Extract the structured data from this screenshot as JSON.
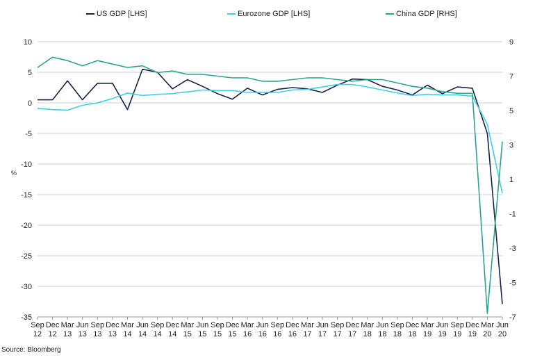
{
  "source": "Source: Bloomberg",
  "chart_data": {
    "type": "line",
    "title": "",
    "ylabel": "%",
    "ylim": [
      -35,
      10
    ],
    "y2lim": [
      -7,
      9
    ],
    "yticks": [
      10,
      5,
      0,
      -5,
      -10,
      -15,
      -20,
      -25,
      -30,
      -35
    ],
    "y2ticks": [
      9,
      7,
      5,
      3,
      1,
      -1,
      -3,
      -5,
      -7
    ],
    "grid": true,
    "legend_position": "top",
    "categories": [
      {
        "m": "Sep",
        "y": "12"
      },
      {
        "m": "Dec",
        "y": "12"
      },
      {
        "m": "Mar",
        "y": "13"
      },
      {
        "m": "Jun",
        "y": "13"
      },
      {
        "m": "Sep",
        "y": "13"
      },
      {
        "m": "Dec",
        "y": "13"
      },
      {
        "m": "Mar",
        "y": "14"
      },
      {
        "m": "Jun",
        "y": "14"
      },
      {
        "m": "Sep",
        "y": "14"
      },
      {
        "m": "Dec",
        "y": "14"
      },
      {
        "m": "Mar",
        "y": "15"
      },
      {
        "m": "Jun",
        "y": "15"
      },
      {
        "m": "Sep",
        "y": "15"
      },
      {
        "m": "Dec",
        "y": "15"
      },
      {
        "m": "Mar",
        "y": "16"
      },
      {
        "m": "Jun",
        "y": "16"
      },
      {
        "m": "Sep",
        "y": "16"
      },
      {
        "m": "Dec",
        "y": "16"
      },
      {
        "m": "Mar",
        "y": "17"
      },
      {
        "m": "Jun",
        "y": "17"
      },
      {
        "m": "Sep",
        "y": "17"
      },
      {
        "m": "Dec",
        "y": "17"
      },
      {
        "m": "Mar",
        "y": "18"
      },
      {
        "m": "Jun",
        "y": "18"
      },
      {
        "m": "Sep",
        "y": "18"
      },
      {
        "m": "Dec",
        "y": "18"
      },
      {
        "m": "Mar",
        "y": "19"
      },
      {
        "m": "Jun",
        "y": "19"
      },
      {
        "m": "Sep",
        "y": "19"
      },
      {
        "m": "Dec",
        "y": "19"
      },
      {
        "m": "Mar",
        "y": "20"
      },
      {
        "m": "Jun",
        "y": "20"
      }
    ],
    "series": [
      {
        "name": "US GDP [LHS]",
        "axis": "left",
        "color": "#14234b",
        "values": [
          0.5,
          0.5,
          3.6,
          0.5,
          3.2,
          3.2,
          -1.1,
          5.5,
          5.0,
          2.3,
          3.8,
          2.7,
          1.5,
          0.6,
          2.4,
          1.3,
          2.2,
          2.5,
          2.3,
          1.7,
          2.9,
          3.9,
          3.8,
          2.7,
          2.1,
          1.3,
          2.9,
          1.5,
          2.6,
          2.4,
          -5.0,
          -32.9
        ]
      },
      {
        "name": "Eurozone GDP [LHS]",
        "axis": "left",
        "color": "#3fd0e8",
        "values": [
          -0.9,
          -1.1,
          -1.2,
          -0.4,
          0.0,
          0.7,
          1.6,
          1.2,
          1.4,
          1.5,
          1.8,
          2.1,
          2.0,
          2.0,
          1.7,
          1.7,
          1.7,
          2.1,
          2.2,
          2.6,
          3.0,
          3.0,
          2.6,
          2.1,
          1.6,
          1.2,
          1.4,
          1.3,
          1.3,
          1.1,
          -3.5,
          -14.8
        ]
      },
      {
        "name": "China GDP [RHS]",
        "axis": "right",
        "color": "#2aa58a",
        "values": [
          7.5,
          8.1,
          7.9,
          7.6,
          7.9,
          7.7,
          7.5,
          7.6,
          7.2,
          7.3,
          7.1,
          7.1,
          7.0,
          6.9,
          6.9,
          6.7,
          6.7,
          6.8,
          6.9,
          6.9,
          6.8,
          6.7,
          6.8,
          6.8,
          6.6,
          6.4,
          6.3,
          6.1,
          6.0,
          6.0,
          -6.8,
          3.2
        ]
      }
    ]
  }
}
